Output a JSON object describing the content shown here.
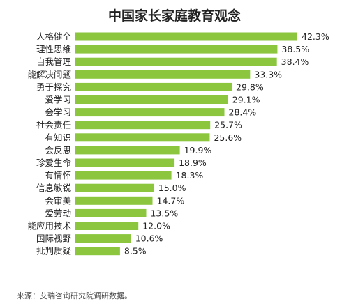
{
  "chart_data": {
    "type": "bar",
    "orientation": "horizontal",
    "title": "中国家长家庭教育观念",
    "categories": [
      "人格健全",
      "理性思维",
      "自我管理",
      "能解决问题",
      "勇于探究",
      "爱学习",
      "会学习",
      "社会责任",
      "有知识",
      "会反思",
      "珍爱生命",
      "有情怀",
      "信息敏锐",
      "会审美",
      "爱劳动",
      "能应用技术",
      "国际视野",
      "批判质疑"
    ],
    "values": [
      42.3,
      38.5,
      38.4,
      33.3,
      29.8,
      29.1,
      28.4,
      25.7,
      25.6,
      19.9,
      18.9,
      18.3,
      15.0,
      14.7,
      13.5,
      12.0,
      10.6,
      8.5
    ],
    "value_labels": [
      "42.3%",
      "38.5%",
      "38.4%",
      "33.3%",
      "29.8%",
      "29.1%",
      "28.4%",
      "25.7%",
      "25.6%",
      "19.9%",
      "18.9%",
      "18.3%",
      "15.0%",
      "14.7%",
      "13.5%",
      "12.0%",
      "10.6%",
      "8.5%"
    ],
    "unit": "%",
    "xlim": [
      0,
      42.3
    ],
    "grid": false,
    "legend": "none",
    "bar_color": "#8cc63f"
  },
  "source": "来源：艾瑞咨询研究院调研数据。"
}
